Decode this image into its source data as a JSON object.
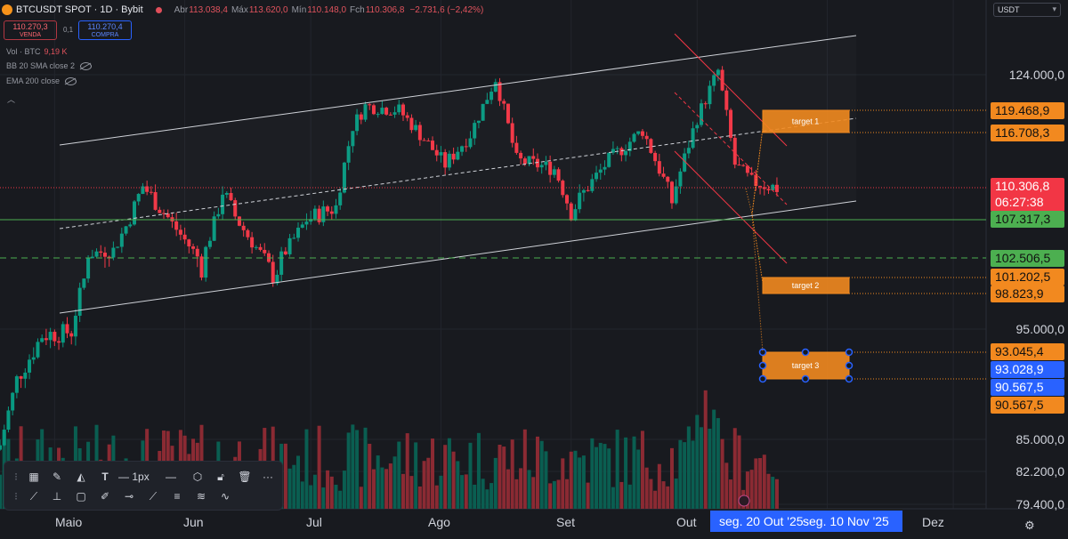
{
  "header": {
    "symbol": "BTCUSDT SPOT · 1D · Bybit",
    "open_label": "Abr",
    "open": "113.038,4",
    "high_label": "Máx",
    "high": "113.620,0",
    "low_label": "Mín",
    "low": "110.148,0",
    "close_label": "Fch",
    "close": "110.306,8",
    "change": "−2.731,6 (−2,42%)"
  },
  "trade": {
    "sell_price": "110.270,3",
    "sell_label": "VENDA",
    "spread": "0,1",
    "buy_price": "110.270,4",
    "buy_label": "COMPRA"
  },
  "indicators": {
    "volume_label": "Vol · BTC",
    "volume_value": "9,19 K",
    "bb_label": "BB 20 SMA close 2",
    "ema_label": "EMA 200 close",
    "collapse_icon": "chevron-up-icon"
  },
  "currency_select": "USDT",
  "colors": {
    "bg": "#181a1f",
    "up": "#089981",
    "down": "#f23645",
    "accent_orange": "#f2891f",
    "green_line": "#4caf50",
    "blue": "#2962ff"
  },
  "chart_data": {
    "type": "candlestick",
    "symbol": "BTCUSDT",
    "interval": "1D",
    "exchange": "Bybit",
    "xlim": [
      "2025-04-18",
      "2025-12-05"
    ],
    "ylim_label_axis": "price (USDT)",
    "price_axis_ticks": [
      "124.000,0",
      "95.000,0",
      "85.000,0",
      "82.200,0",
      "79.400,0"
    ],
    "month_ticks": [
      "Maio",
      "Jun",
      "Jul",
      "Ago",
      "Set",
      "Out",
      "Dez"
    ],
    "last_close": 110306.8,
    "close_series": [
      {
        "date": "2025-04-18",
        "close": 84500
      },
      {
        "date": "2025-04-22",
        "close": 90500
      },
      {
        "date": "2025-04-28",
        "close": 94500
      },
      {
        "date": "2025-05-05",
        "close": 94800
      },
      {
        "date": "2025-05-09",
        "close": 103000
      },
      {
        "date": "2025-05-15",
        "close": 103500
      },
      {
        "date": "2025-05-22",
        "close": 110500
      },
      {
        "date": "2025-05-28",
        "close": 107500
      },
      {
        "date": "2025-06-05",
        "close": 102000
      },
      {
        "date": "2025-06-10",
        "close": 110000
      },
      {
        "date": "2025-06-17",
        "close": 104500
      },
      {
        "date": "2025-06-22",
        "close": 101000
      },
      {
        "date": "2025-06-30",
        "close": 107300
      },
      {
        "date": "2025-07-07",
        "close": 108500
      },
      {
        "date": "2025-07-11",
        "close": 117500
      },
      {
        "date": "2025-07-14",
        "close": 120000
      },
      {
        "date": "2025-07-22",
        "close": 119500
      },
      {
        "date": "2025-08-02",
        "close": 113000
      },
      {
        "date": "2025-08-08",
        "close": 116500
      },
      {
        "date": "2025-08-14",
        "close": 123500
      },
      {
        "date": "2025-08-19",
        "close": 113500
      },
      {
        "date": "2025-08-28",
        "close": 112500
      },
      {
        "date": "2025-09-01",
        "close": 108000
      },
      {
        "date": "2025-09-10",
        "close": 113500
      },
      {
        "date": "2025-09-18",
        "close": 117000
      },
      {
        "date": "2025-09-25",
        "close": 109000
      },
      {
        "date": "2025-10-01",
        "close": 118500
      },
      {
        "date": "2025-10-06",
        "close": 124500
      },
      {
        "date": "2025-10-10",
        "close": 113000
      },
      {
        "date": "2025-10-14",
        "close": 111000
      },
      {
        "date": "2025-10-20",
        "close": 110306.8
      }
    ],
    "volume": "bars under price, colored by candle direction",
    "horizontal_levels": [
      {
        "price": 107317.3,
        "style": "solid",
        "color": "#4caf50"
      },
      {
        "price": 102506.5,
        "style": "dashed",
        "color": "#4caf50"
      }
    ],
    "targets": [
      {
        "label": "target 1",
        "top": 119468.9,
        "bottom": 116708.3
      },
      {
        "label": "target 2",
        "top": 101202.5,
        "bottom": 98823.9
      },
      {
        "label": "target 3",
        "top": 93045.4,
        "bottom": 90567.5
      }
    ],
    "price_tags": [
      {
        "text": "119.468,9",
        "color": "orange"
      },
      {
        "text": "116.708,3",
        "color": "orange"
      },
      {
        "text": "110.306,8",
        "color": "red",
        "sub": "06:27:38"
      },
      {
        "text": "107.317,3",
        "color": "green"
      },
      {
        "text": "102.506,5",
        "color": "green"
      },
      {
        "text": "101.202,5",
        "color": "orange"
      },
      {
        "text": "98.823,9",
        "color": "orange"
      },
      {
        "text": "93.045,4",
        "color": "orange"
      },
      {
        "text": "93.028,9",
        "color": "blue"
      },
      {
        "text": "90.567,5",
        "color": "blue"
      },
      {
        "text": "90.567,5",
        "color": "orange"
      }
    ],
    "time_selection": {
      "start": "seg. 20 Out '25",
      "end": "seg. 10 Nov '25"
    }
  },
  "xaxis": {
    "sel_start_label": "seg. 20 Out '25",
    "sel_end_label": "seg. 10 Nov '25"
  },
  "toolbar": {
    "row1": [
      "grid-icon",
      "pencil-icon",
      "fill-icon",
      "text-icon",
      "line-width-icon",
      "1px",
      "line-style-icon",
      "settings-icon",
      "lock-icon",
      "trash-icon",
      "more-icon"
    ],
    "row2": [
      "pen-icon",
      "measure-icon",
      "frame-icon",
      "brush-icon",
      "horizontal-line-icon",
      "trend-line-icon",
      "parallel-channel-icon",
      "path-icon",
      "wave-icon"
    ],
    "line_width_text": "1px"
  }
}
